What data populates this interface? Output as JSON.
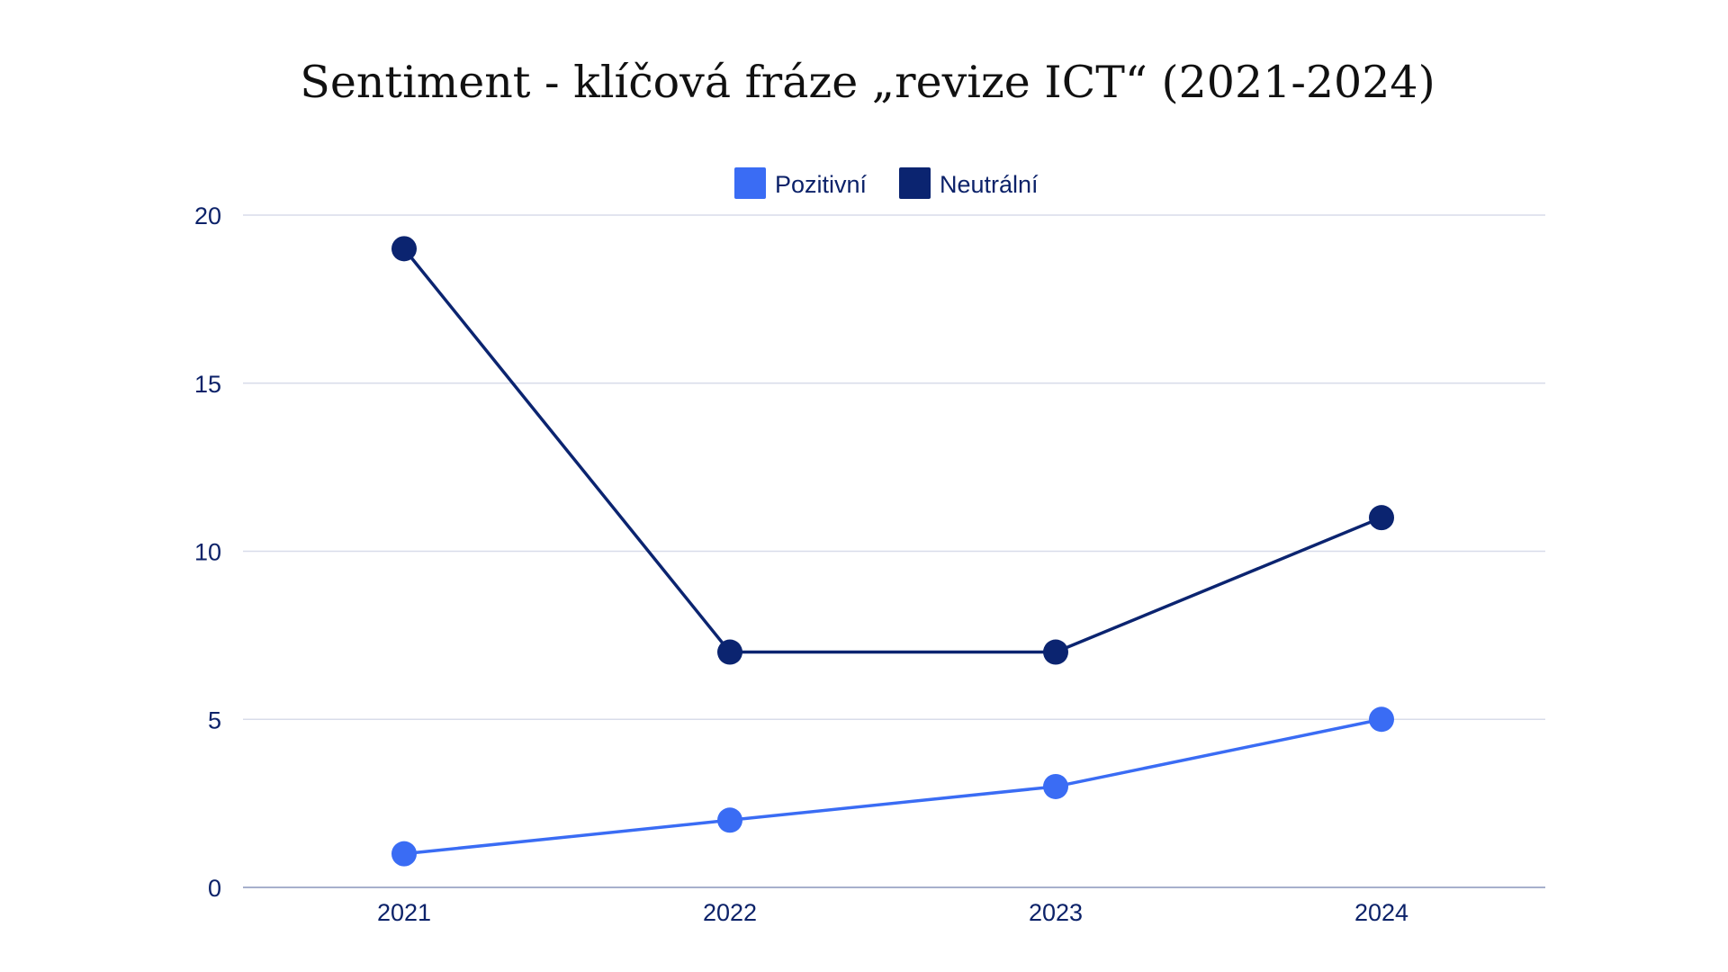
{
  "chart_data": {
    "type": "line",
    "title": "Sentiment - klíčová fráze „revize ICT“ (2021-2024)",
    "xlabel": "",
    "ylabel": "",
    "categories": [
      "2021",
      "2022",
      "2023",
      "2024"
    ],
    "series": [
      {
        "name": "Pozitivní",
        "color": "#3a6cf4",
        "values": [
          1,
          2,
          3,
          5
        ]
      },
      {
        "name": "Neutrální",
        "color": "#0b2470",
        "values": [
          19,
          7,
          7,
          11
        ]
      }
    ],
    "ylim": [
      0,
      20
    ],
    "yticks": [
      0,
      5,
      10,
      15,
      20
    ],
    "grid": true,
    "legend_position": "top-center"
  }
}
